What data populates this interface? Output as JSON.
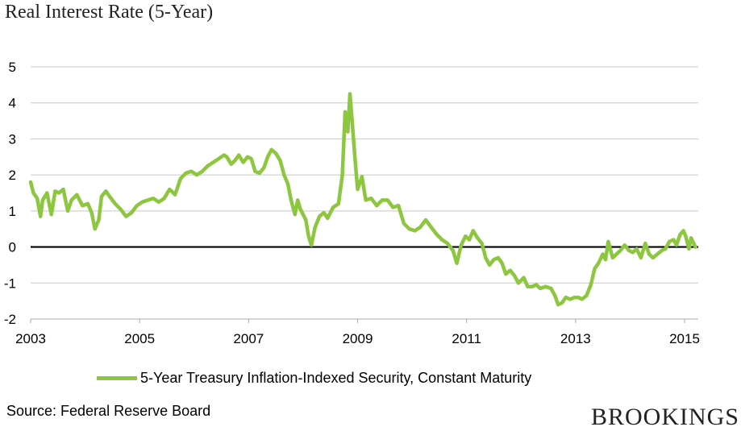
{
  "chart_data": {
    "type": "line",
    "title": "Real Interest Rate (5-Year)",
    "xlabel": "",
    "ylabel": "",
    "xlim": [
      2003,
      2015.25
    ],
    "ylim": [
      -2,
      5
    ],
    "yticks": [
      5,
      4,
      3,
      2,
      1,
      0,
      -1,
      -2
    ],
    "xticks": [
      2003,
      2005,
      2007,
      2009,
      2011,
      2013,
      2015
    ],
    "xtick_labels": [
      "2003",
      "2005",
      "2007",
      "2009",
      "2011",
      "2013",
      "2015"
    ],
    "grid": true,
    "zero_line": true,
    "legend": "bottom",
    "series": [
      {
        "name": "5-Year Treasury Inflation-Indexed Security, Constant Maturity",
        "color": "#8dc63f",
        "points": [
          [
            2003.0,
            1.8
          ],
          [
            2003.05,
            1.5
          ],
          [
            2003.12,
            1.35
          ],
          [
            2003.18,
            0.85
          ],
          [
            2003.22,
            1.3
          ],
          [
            2003.3,
            1.5
          ],
          [
            2003.38,
            0.9
          ],
          [
            2003.45,
            1.55
          ],
          [
            2003.52,
            1.5
          ],
          [
            2003.6,
            1.6
          ],
          [
            2003.68,
            1.0
          ],
          [
            2003.75,
            1.3
          ],
          [
            2003.85,
            1.45
          ],
          [
            2003.95,
            1.15
          ],
          [
            2004.05,
            1.2
          ],
          [
            2004.12,
            0.95
          ],
          [
            2004.18,
            0.5
          ],
          [
            2004.25,
            0.75
          ],
          [
            2004.3,
            1.4
          ],
          [
            2004.38,
            1.55
          ],
          [
            2004.45,
            1.4
          ],
          [
            2004.55,
            1.2
          ],
          [
            2004.65,
            1.05
          ],
          [
            2004.75,
            0.85
          ],
          [
            2004.85,
            0.95
          ],
          [
            2004.95,
            1.15
          ],
          [
            2005.05,
            1.25
          ],
          [
            2005.15,
            1.3
          ],
          [
            2005.25,
            1.35
          ],
          [
            2005.35,
            1.25
          ],
          [
            2005.45,
            1.35
          ],
          [
            2005.55,
            1.6
          ],
          [
            2005.65,
            1.45
          ],
          [
            2005.75,
            1.9
          ],
          [
            2005.85,
            2.05
          ],
          [
            2005.95,
            2.1
          ],
          [
            2006.05,
            2.0
          ],
          [
            2006.15,
            2.1
          ],
          [
            2006.25,
            2.25
          ],
          [
            2006.35,
            2.35
          ],
          [
            2006.45,
            2.45
          ],
          [
            2006.55,
            2.55
          ],
          [
            2006.6,
            2.5
          ],
          [
            2006.68,
            2.3
          ],
          [
            2006.75,
            2.4
          ],
          [
            2006.82,
            2.55
          ],
          [
            2006.9,
            2.35
          ],
          [
            2006.98,
            2.5
          ],
          [
            2007.05,
            2.45
          ],
          [
            2007.12,
            2.1
          ],
          [
            2007.2,
            2.05
          ],
          [
            2007.28,
            2.2
          ],
          [
            2007.35,
            2.5
          ],
          [
            2007.42,
            2.7
          ],
          [
            2007.5,
            2.6
          ],
          [
            2007.58,
            2.4
          ],
          [
            2007.65,
            2.0
          ],
          [
            2007.72,
            1.75
          ],
          [
            2007.78,
            1.3
          ],
          [
            2007.85,
            0.9
          ],
          [
            2007.9,
            1.3
          ],
          [
            2007.95,
            1.05
          ],
          [
            2008.05,
            0.75
          ],
          [
            2008.1,
            0.3
          ],
          [
            2008.15,
            0.05
          ],
          [
            2008.22,
            0.55
          ],
          [
            2008.3,
            0.85
          ],
          [
            2008.38,
            0.95
          ],
          [
            2008.45,
            0.8
          ],
          [
            2008.55,
            1.1
          ],
          [
            2008.65,
            1.2
          ],
          [
            2008.72,
            2.0
          ],
          [
            2008.77,
            3.75
          ],
          [
            2008.82,
            3.2
          ],
          [
            2008.86,
            4.25
          ],
          [
            2008.9,
            3.5
          ],
          [
            2008.95,
            2.5
          ],
          [
            2009.0,
            1.6
          ],
          [
            2009.08,
            1.95
          ],
          [
            2009.15,
            1.3
          ],
          [
            2009.25,
            1.35
          ],
          [
            2009.35,
            1.15
          ],
          [
            2009.45,
            1.3
          ],
          [
            2009.55,
            1.3
          ],
          [
            2009.65,
            1.1
          ],
          [
            2009.75,
            1.15
          ],
          [
            2009.85,
            0.65
          ],
          [
            2009.95,
            0.5
          ],
          [
            2010.05,
            0.45
          ],
          [
            2010.15,
            0.55
          ],
          [
            2010.25,
            0.75
          ],
          [
            2010.35,
            0.55
          ],
          [
            2010.45,
            0.35
          ],
          [
            2010.55,
            0.2
          ],
          [
            2010.65,
            0.1
          ],
          [
            2010.75,
            -0.1
          ],
          [
            2010.82,
            -0.45
          ],
          [
            2010.9,
            0.05
          ],
          [
            2010.98,
            0.3
          ],
          [
            2011.05,
            0.2
          ],
          [
            2011.12,
            0.45
          ],
          [
            2011.2,
            0.25
          ],
          [
            2011.28,
            0.1
          ],
          [
            2011.35,
            -0.3
          ],
          [
            2011.42,
            -0.5
          ],
          [
            2011.5,
            -0.35
          ],
          [
            2011.58,
            -0.3
          ],
          [
            2011.65,
            -0.45
          ],
          [
            2011.72,
            -0.75
          ],
          [
            2011.8,
            -0.65
          ],
          [
            2011.88,
            -0.8
          ],
          [
            2011.95,
            -1.0
          ],
          [
            2012.05,
            -0.85
          ],
          [
            2012.12,
            -1.1
          ],
          [
            2012.2,
            -1.1
          ],
          [
            2012.28,
            -1.05
          ],
          [
            2012.35,
            -1.15
          ],
          [
            2012.45,
            -1.1
          ],
          [
            2012.55,
            -1.15
          ],
          [
            2012.62,
            -1.35
          ],
          [
            2012.68,
            -1.6
          ],
          [
            2012.75,
            -1.55
          ],
          [
            2012.82,
            -1.4
          ],
          [
            2012.9,
            -1.45
          ],
          [
            2012.98,
            -1.4
          ],
          [
            2013.05,
            -1.4
          ],
          [
            2013.12,
            -1.45
          ],
          [
            2013.2,
            -1.35
          ],
          [
            2013.28,
            -1.05
          ],
          [
            2013.35,
            -0.6
          ],
          [
            2013.42,
            -0.45
          ],
          [
            2013.5,
            -0.2
          ],
          [
            2013.55,
            -0.35
          ],
          [
            2013.6,
            0.15
          ],
          [
            2013.68,
            -0.3
          ],
          [
            2013.75,
            -0.2
          ],
          [
            2013.82,
            -0.1
          ],
          [
            2013.9,
            0.05
          ],
          [
            2013.98,
            -0.1
          ],
          [
            2014.05,
            -0.15
          ],
          [
            2014.12,
            -0.05
          ],
          [
            2014.2,
            -0.3
          ],
          [
            2014.28,
            0.1
          ],
          [
            2014.35,
            -0.2
          ],
          [
            2014.42,
            -0.3
          ],
          [
            2014.5,
            -0.2
          ],
          [
            2014.58,
            -0.1
          ],
          [
            2014.65,
            -0.05
          ],
          [
            2014.72,
            0.15
          ],
          [
            2014.8,
            0.2
          ],
          [
            2014.85,
            0.05
          ],
          [
            2014.92,
            0.35
          ],
          [
            2014.98,
            0.45
          ],
          [
            2015.02,
            0.3
          ],
          [
            2015.08,
            -0.05
          ],
          [
            2015.12,
            0.25
          ],
          [
            2015.2,
            0.0
          ]
        ]
      }
    ]
  },
  "legend": {
    "label": "5-Year Treasury Inflation-Indexed Security, Constant Maturity"
  },
  "source": "Source: Federal Reserve Board",
  "brand": "BROOKINGS"
}
